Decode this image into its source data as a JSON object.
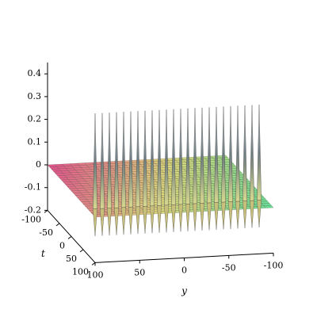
{
  "chart_data": {
    "type": "surface",
    "x_label": "y",
    "y_label": "t",
    "xlim": [
      100,
      -100
    ],
    "xticks": [
      100,
      50,
      0,
      -50,
      -100
    ],
    "ylim": [
      -100,
      100
    ],
    "yticks": [
      -100,
      -50,
      0,
      50,
      100
    ],
    "zlim": [
      -0.2,
      0.45
    ],
    "zticks": [
      0.4,
      0.3,
      0.2,
      0.1,
      0,
      -0.1,
      -0.2
    ],
    "colormap": [
      "#e0558a",
      "#dcd77a",
      "#5fdc96"
    ],
    "ridge_t": 70,
    "ridge_y": [
      92,
      84,
      76,
      68,
      60,
      52,
      44,
      36,
      28,
      20,
      12,
      4,
      -4,
      -12,
      -20,
      -28,
      -36,
      -44,
      -52,
      -60,
      -68,
      -76,
      -84,
      -92
    ],
    "peaks": [
      0.42,
      0.42,
      0.42,
      0.42,
      0.42,
      0.42,
      0.42,
      0.42,
      0.42,
      0.42,
      0.42,
      0.42,
      0.42,
      0.42,
      0.42,
      0.42,
      0.42,
      0.42,
      0.42,
      0.42,
      0.42,
      0.42,
      0.42,
      0.42
    ],
    "troughs": [
      -0.12,
      -0.12,
      -0.12,
      -0.12,
      -0.12,
      -0.12,
      -0.12,
      -0.12,
      -0.12,
      -0.12,
      -0.12,
      -0.12,
      -0.12,
      -0.12,
      -0.12,
      -0.12,
      -0.12,
      -0.12,
      -0.12,
      -0.12,
      -0.12,
      -0.12,
      -0.12,
      -0.12
    ]
  }
}
